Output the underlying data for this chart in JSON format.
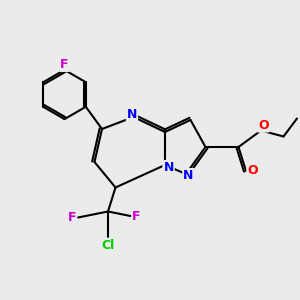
{
  "bg_color": "#ebebeb",
  "bond_color": "#000000",
  "N_color": "#0000ff",
  "O_color": "#ff0000",
  "F_color": "#cc00cc",
  "Cl_color": "#00cc00",
  "line_width": 1.5,
  "font_size": 9,
  "fig_width": 3.0,
  "fig_height": 3.0,
  "dpi": 100,
  "xlim": [
    0,
    10
  ],
  "ylim": [
    0,
    10
  ]
}
